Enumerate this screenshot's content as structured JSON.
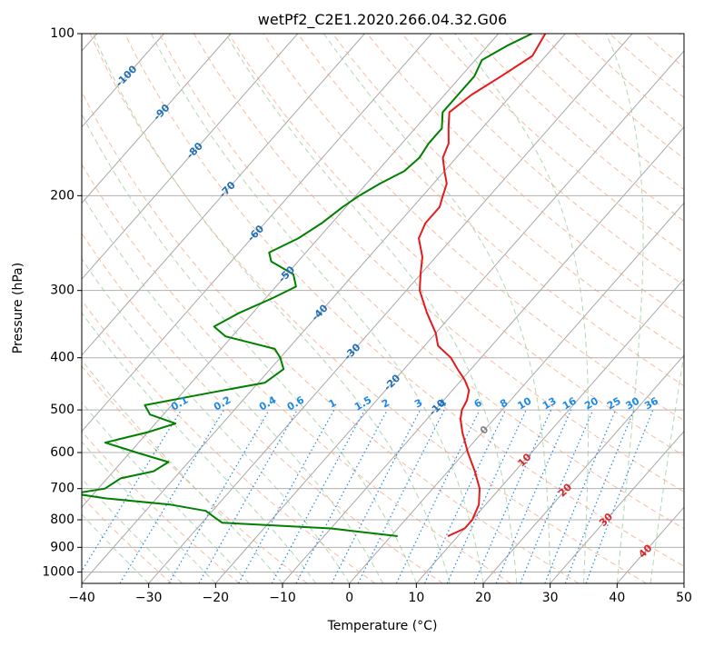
{
  "chart_data": {
    "type": "line",
    "subtype": "skew-t log-p",
    "title": "wetPf2_C2E1.2020.266.04.32.G06",
    "xlabel": "Temperature (°C)",
    "ylabel": "Pressure (hPa)",
    "xlim": [
      -40,
      50
    ],
    "ylim": [
      1050,
      100
    ],
    "y_scale": "log",
    "grid": true,
    "x_ticks": [
      -40,
      -30,
      -20,
      -10,
      0,
      10,
      20,
      30,
      40,
      50
    ],
    "x_tick_labels": [
      "−40",
      "−30",
      "−20",
      "−10",
      "0",
      "10",
      "20",
      "30",
      "40",
      "50"
    ],
    "y_ticks": [
      100,
      200,
      300,
      400,
      500,
      600,
      700,
      800,
      900,
      1000
    ],
    "y_tick_labels": [
      "100",
      "200",
      "300",
      "400",
      "500",
      "600",
      "700",
      "800",
      "900",
      "1000"
    ],
    "isotherm_labels": [
      {
        "text": "-100",
        "t": -100,
        "p": 120
      },
      {
        "text": "-90",
        "t": -90,
        "p": 140
      },
      {
        "text": "-80",
        "t": -80,
        "p": 165
      },
      {
        "text": "-70",
        "t": -70,
        "p": 195
      },
      {
        "text": "-60",
        "t": -60,
        "p": 235
      },
      {
        "text": "-50",
        "t": -50,
        "p": 280
      },
      {
        "text": "-40",
        "t": -40,
        "p": 330
      },
      {
        "text": "-30",
        "t": -30,
        "p": 390
      },
      {
        "text": "-20",
        "t": -20,
        "p": 445
      },
      {
        "text": "-10",
        "t": -10,
        "p": 495
      },
      {
        "text": "0",
        "t": 0,
        "p": 545
      },
      {
        "text": "10",
        "t": 10,
        "p": 620
      },
      {
        "text": "20",
        "t": 20,
        "p": 705
      },
      {
        "text": "30",
        "t": 30,
        "p": 800
      },
      {
        "text": "40",
        "t": 40,
        "p": 915
      }
    ],
    "mixing_ratio_labels": [
      "0.1",
      "0.2",
      "0.4",
      "0.6",
      "1",
      "1.5",
      "2",
      "3",
      "4",
      "6",
      "8",
      "10",
      "13",
      "16",
      "20",
      "25",
      "30",
      "36"
    ],
    "mixing_ratio_values": [
      0.1,
      0.2,
      0.4,
      0.6,
      1,
      1.5,
      2,
      3,
      4,
      6,
      8,
      10,
      13,
      16,
      20,
      25,
      30,
      36
    ],
    "series": [
      {
        "name": "",
        "color": "#e41a1c",
        "points": [
          {
            "p": 100,
            "t": -43
          },
          {
            "p": 110,
            "t": -42
          },
          {
            "p": 120,
            "t": -44
          },
          {
            "p": 130,
            "t": -46
          },
          {
            "p": 140,
            "t": -47
          },
          {
            "p": 150,
            "t": -45
          },
          {
            "p": 160,
            "t": -43
          },
          {
            "p": 170,
            "t": -42
          },
          {
            "p": 180,
            "t": -40
          },
          {
            "p": 190,
            "t": -38
          },
          {
            "p": 200,
            "t": -37
          },
          {
            "p": 210,
            "t": -36
          },
          {
            "p": 225,
            "t": -36
          },
          {
            "p": 240,
            "t": -35
          },
          {
            "p": 260,
            "t": -32
          },
          {
            "p": 280,
            "t": -30
          },
          {
            "p": 300,
            "t": -28
          },
          {
            "p": 330,
            "t": -24
          },
          {
            "p": 360,
            "t": -20
          },
          {
            "p": 380,
            "t": -18
          },
          {
            "p": 400,
            "t": -14.5
          },
          {
            "p": 420,
            "t": -12
          },
          {
            "p": 440,
            "t": -9.5
          },
          {
            "p": 460,
            "t": -7.5
          },
          {
            "p": 480,
            "t": -6.5
          },
          {
            "p": 500,
            "t": -6
          },
          {
            "p": 520,
            "t": -5
          },
          {
            "p": 550,
            "t": -3
          },
          {
            "p": 600,
            "t": 0.5
          },
          {
            "p": 650,
            "t": 4
          },
          {
            "p": 700,
            "t": 7
          },
          {
            "p": 750,
            "t": 9
          },
          {
            "p": 800,
            "t": 10
          },
          {
            "p": 830,
            "t": 10
          },
          {
            "p": 858,
            "t": 8.5
          }
        ]
      },
      {
        "name": "",
        "color": "#008000",
        "points": [
          {
            "p": 100,
            "t": -45
          },
          {
            "p": 105,
            "t": -47
          },
          {
            "p": 112,
            "t": -49
          },
          {
            "p": 120,
            "t": -48
          },
          {
            "p": 130,
            "t": -48
          },
          {
            "p": 140,
            "t": -48
          },
          {
            "p": 150,
            "t": -46
          },
          {
            "p": 160,
            "t": -46
          },
          {
            "p": 170,
            "t": -45.5
          },
          {
            "p": 180,
            "t": -46
          },
          {
            "p": 190,
            "t": -48
          },
          {
            "p": 200,
            "t": -49.5
          },
          {
            "p": 210,
            "t": -50.5
          },
          {
            "p": 225,
            "t": -51.5
          },
          {
            "p": 240,
            "t": -53
          },
          {
            "p": 255,
            "t": -55.5
          },
          {
            "p": 265,
            "t": -54
          },
          {
            "p": 280,
            "t": -49
          },
          {
            "p": 295,
            "t": -47
          },
          {
            "p": 310,
            "t": -49
          },
          {
            "p": 330,
            "t": -52
          },
          {
            "p": 350,
            "t": -54
          },
          {
            "p": 365,
            "t": -51
          },
          {
            "p": 385,
            "t": -42
          },
          {
            "p": 400,
            "t": -40
          },
          {
            "p": 420,
            "t": -38
          },
          {
            "p": 445,
            "t": -39
          },
          {
            "p": 465,
            "t": -46
          },
          {
            "p": 490,
            "t": -54
          },
          {
            "p": 510,
            "t": -52
          },
          {
            "p": 530,
            "t": -47
          },
          {
            "p": 550,
            "t": -50
          },
          {
            "p": 575,
            "t": -55
          },
          {
            "p": 600,
            "t": -49
          },
          {
            "p": 625,
            "t": -43
          },
          {
            "p": 650,
            "t": -44
          },
          {
            "p": 670,
            "t": -48
          },
          {
            "p": 700,
            "t": -49
          },
          {
            "p": 715,
            "t": -53
          },
          {
            "p": 730,
            "t": -47.5
          },
          {
            "p": 750,
            "t": -37
          },
          {
            "p": 770,
            "t": -31
          },
          {
            "p": 790,
            "t": -29
          },
          {
            "p": 810,
            "t": -27
          },
          {
            "p": 830,
            "t": -10
          },
          {
            "p": 858,
            "t": 1
          }
        ]
      }
    ]
  }
}
